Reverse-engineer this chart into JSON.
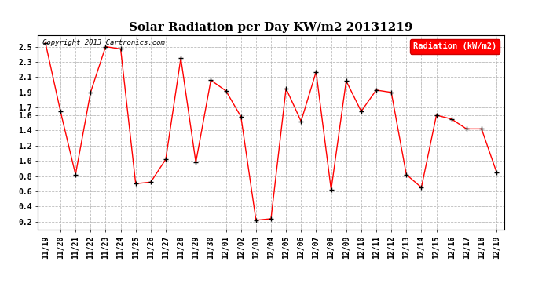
{
  "title": "Solar Radiation per Day KW/m2 20131219",
  "copyright_text": "Copyright 2013 Cartronics.com",
  "legend_label": "Radiation (kW/m2)",
  "dates": [
    "11/19",
    "11/20",
    "11/21",
    "11/22",
    "11/23",
    "11/24",
    "11/25",
    "11/26",
    "11/27",
    "11/28",
    "11/29",
    "11/30",
    "12/01",
    "12/02",
    "12/03",
    "12/04",
    "12/05",
    "12/06",
    "12/07",
    "12/08",
    "12/09",
    "12/10",
    "12/11",
    "12/12",
    "12/13",
    "12/14",
    "12/15",
    "12/16",
    "12/17",
    "12/18",
    "12/19"
  ],
  "values": [
    2.55,
    1.65,
    0.82,
    1.9,
    2.5,
    2.47,
    0.7,
    0.72,
    1.02,
    2.35,
    0.98,
    2.06,
    1.92,
    1.58,
    0.22,
    0.24,
    1.95,
    1.52,
    2.17,
    0.62,
    2.05,
    1.65,
    1.93,
    1.9,
    0.82,
    0.65,
    1.6,
    1.55,
    1.42,
    1.42,
    0.85
  ],
  "line_color": "#ff0000",
  "marker_color": "#000000",
  "background_color": "#ffffff",
  "grid_color": "#bbbbbb",
  "ylim": [
    0.1,
    2.65
  ],
  "yticks": [
    0.2,
    0.4,
    0.6,
    0.8,
    1.0,
    1.2,
    1.4,
    1.6,
    1.7,
    1.9,
    2.1,
    2.3,
    2.5
  ],
  "legend_bg": "#ff0000",
  "legend_text_color": "#ffffff",
  "title_fontsize": 11,
  "tick_fontsize": 7,
  "figsize": [
    6.9,
    3.75
  ],
  "dpi": 100
}
